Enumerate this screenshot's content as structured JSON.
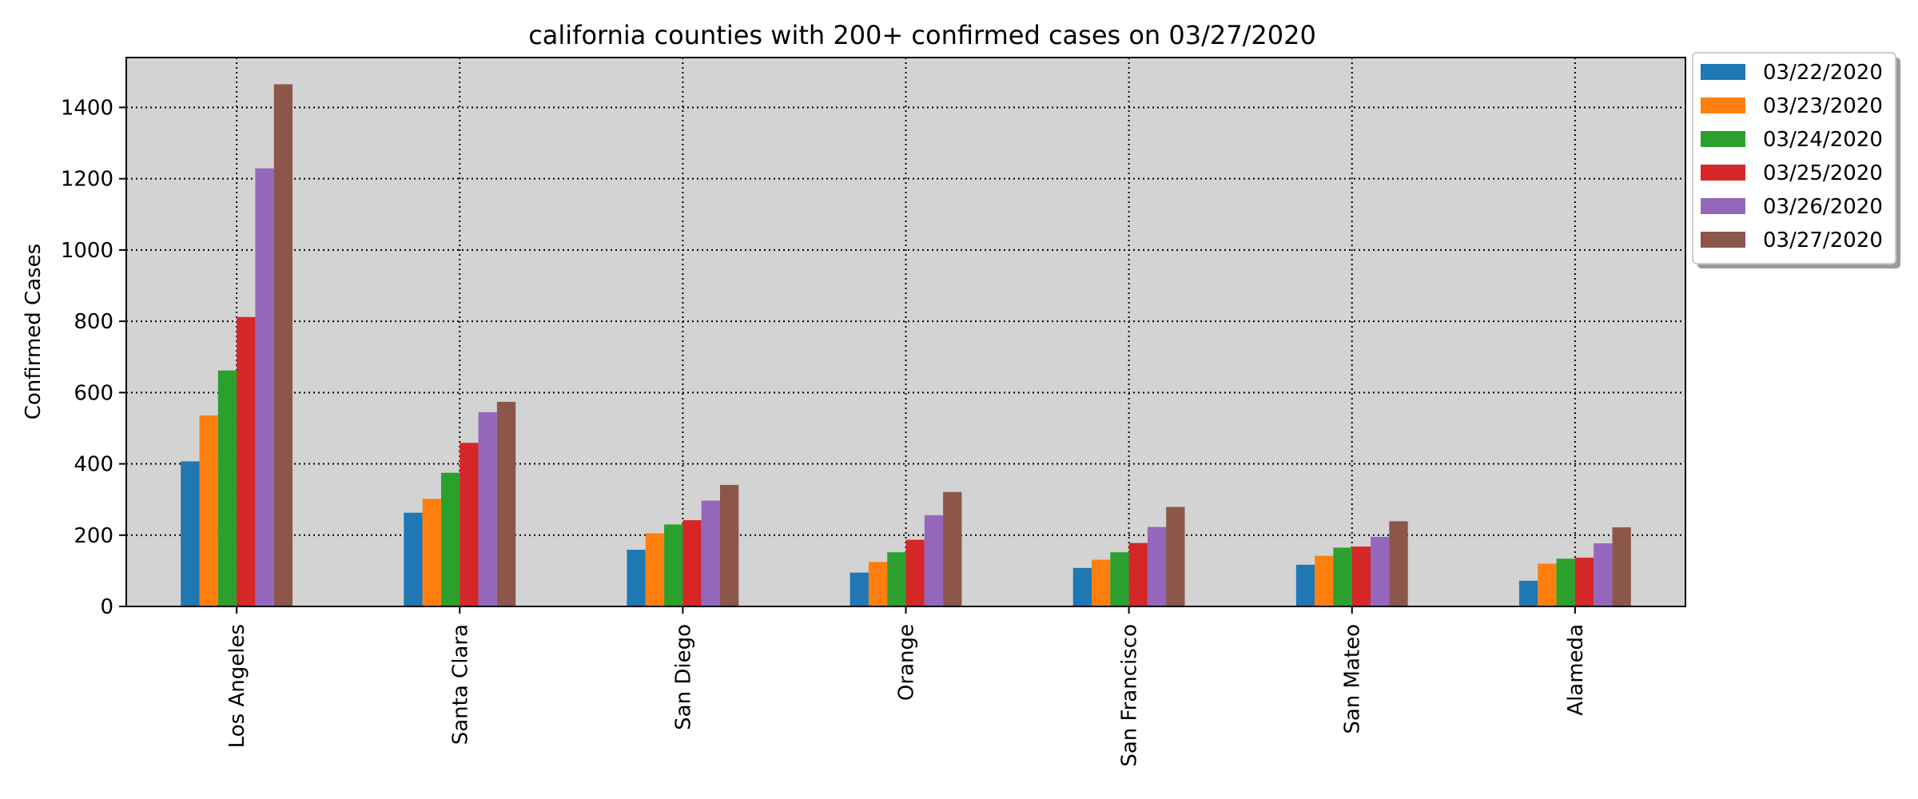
{
  "chart_data": {
    "type": "bar",
    "title": "california counties with 200+ confirmed cases on 03/27/2020",
    "xlabel": "",
    "ylabel": "Confirmed Cases",
    "ylim": [
      0,
      1540
    ],
    "yticks": [
      0,
      200,
      400,
      600,
      800,
      1000,
      1200,
      1400
    ],
    "grid": true,
    "legend_position": "outside-top-right",
    "categories": [
      "Los Angeles",
      "Santa Clara",
      "San Diego",
      "Orange",
      "San Francisco",
      "San Mateo",
      "Alameda"
    ],
    "series": [
      {
        "name": "03/22/2020",
        "color": "#1f77b4",
        "values": [
          407,
          263,
          159,
          95,
          108,
          117,
          72
        ]
      },
      {
        "name": "03/23/2020",
        "color": "#ff7f0e",
        "values": [
          536,
          302,
          205,
          125,
          131,
          142,
          120
        ]
      },
      {
        "name": "03/24/2020",
        "color": "#2ca02c",
        "values": [
          662,
          375,
          230,
          152,
          152,
          165,
          134
        ]
      },
      {
        "name": "03/25/2020",
        "color": "#d62728",
        "values": [
          812,
          459,
          242,
          187,
          178,
          168,
          137
        ]
      },
      {
        "name": "03/26/2020",
        "color": "#9467bd",
        "values": [
          1229,
          545,
          297,
          256,
          223,
          195,
          177
        ]
      },
      {
        "name": "03/27/2020",
        "color": "#8c564b",
        "values": [
          1465,
          574,
          341,
          321,
          279,
          239,
          222
        ]
      }
    ]
  },
  "colors": {
    "plot_background": "#d3d3d3",
    "grid": "#000000"
  }
}
